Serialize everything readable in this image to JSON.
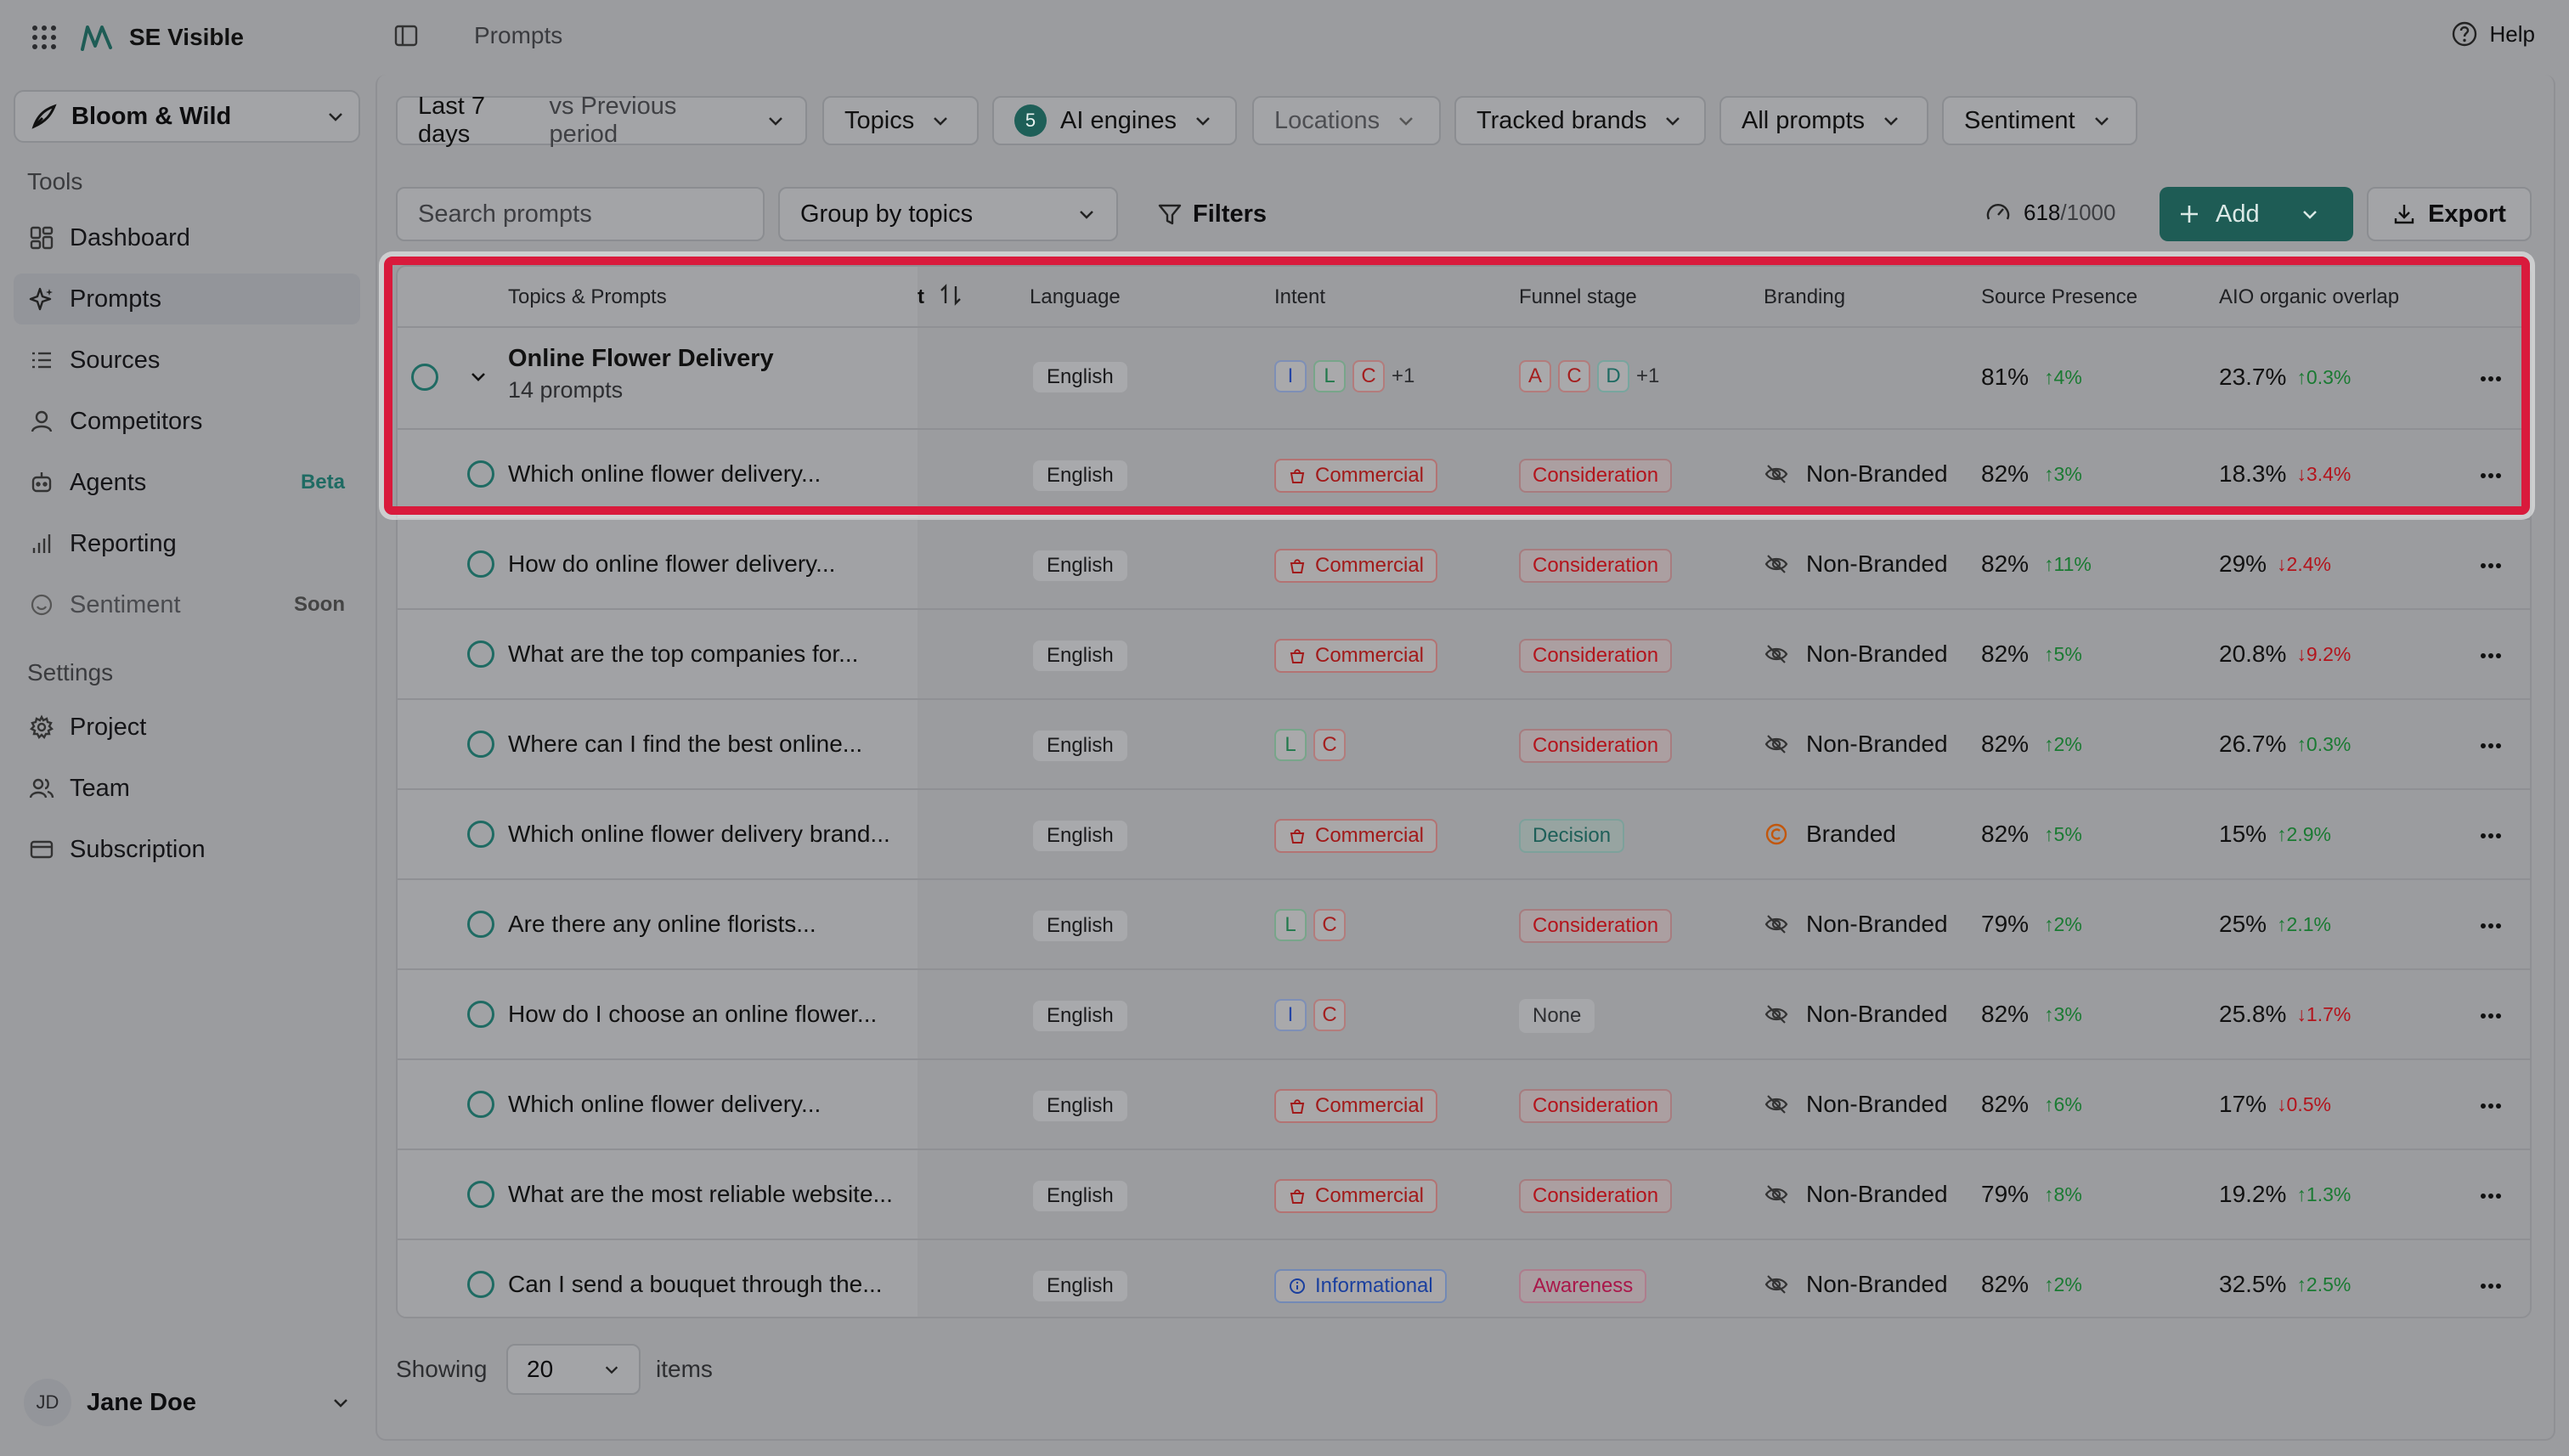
{
  "app": {
    "name": "SE Visible",
    "project": "Bloom & Wild",
    "breadcrumb": "Prompts",
    "help": "Help"
  },
  "sidebar": {
    "tools_label": "Tools",
    "settings_label": "Settings",
    "items": [
      {
        "label": "Dashboard",
        "icon": "dashboard-icon"
      },
      {
        "label": "Prompts",
        "icon": "sparkle-icon"
      },
      {
        "label": "Sources",
        "icon": "list-icon"
      },
      {
        "label": "Competitors",
        "icon": "user-icon"
      },
      {
        "label": "Agents",
        "icon": "robot-icon",
        "badge": "Beta"
      },
      {
        "label": "Reporting",
        "icon": "bar-chart-icon"
      },
      {
        "label": "Sentiment",
        "icon": "smile-icon",
        "badge": "Soon"
      }
    ],
    "settings": [
      {
        "label": "Project",
        "icon": "gear-icon"
      },
      {
        "label": "Team",
        "icon": "users-icon"
      },
      {
        "label": "Subscription",
        "icon": "card-icon"
      }
    ],
    "user": {
      "initials": "JD",
      "name": "Jane Doe"
    }
  },
  "filters": {
    "period": "Last 7 days",
    "period_compare": "vs Previous period",
    "topics": "Topics",
    "engines_count": "5",
    "engines": "AI engines",
    "locations": "Locations",
    "tracked_brands": "Tracked brands",
    "all_prompts": "All prompts",
    "sentiment": "Sentiment"
  },
  "toolbar": {
    "search_placeholder": "Search prompts",
    "group_by": "Group by topics",
    "filters": "Filters",
    "quota_used": "618",
    "quota_total": "/1000",
    "add": "Add",
    "export": "Export"
  },
  "table": {
    "headers": {
      "topics": "Topics & Prompts",
      "truncated": "t",
      "language": "Language",
      "intent": "Intent",
      "funnel": "Funnel stage",
      "branding": "Branding",
      "source": "Source Presence",
      "aio": "AIO organic overlap"
    },
    "group": {
      "title": "Online Flower Delivery",
      "count": "14 prompts",
      "language": "English",
      "intent_letters": [
        "I",
        "L",
        "C"
      ],
      "intent_more": "+1",
      "funnel_letters": [
        "A",
        "C",
        "D"
      ],
      "funnel_more": "+1",
      "source": "81%",
      "source_delta": "4%",
      "aio": "23.7%",
      "aio_delta": "0.3%"
    },
    "rows": [
      {
        "prompt": "Which online flower delivery...",
        "language": "English",
        "intent": "Commercial",
        "funnel": "Consideration",
        "branding": "Non-Branded",
        "source": "82%",
        "source_delta": "3%",
        "aio": "18.3%",
        "aio_delta": "3.4%"
      },
      {
        "prompt": "How do online flower delivery...",
        "language": "English",
        "intent": "Commercial",
        "funnel": "Consideration",
        "branding": "Non-Branded",
        "source": "82%",
        "source_delta": "11%",
        "aio": "29%",
        "aio_delta": "2.4%"
      },
      {
        "prompt": "What are the top companies for...",
        "language": "English",
        "intent": "Commercial",
        "funnel": "Consideration",
        "branding": "Non-Branded",
        "source": "82%",
        "source_delta": "5%",
        "aio": "20.8%",
        "aio_delta": "9.2%"
      },
      {
        "prompt": "Where can I find the best online...",
        "language": "English",
        "intent_letters": [
          "L",
          "C"
        ],
        "funnel": "Consideration",
        "branding": "Non-Branded",
        "source": "82%",
        "source_delta": "2%",
        "aio": "26.7%",
        "aio_delta": "0.3%"
      },
      {
        "prompt": "Which online flower delivery brand...",
        "language": "English",
        "intent": "Commercial",
        "funnel": "Decision",
        "branding": "Branded",
        "source": "82%",
        "source_delta": "5%",
        "aio": "15%",
        "aio_delta": "2.9%"
      },
      {
        "prompt": "Are there any online florists...",
        "language": "English",
        "intent_letters": [
          "L",
          "C"
        ],
        "funnel": "Consideration",
        "branding": "Non-Branded",
        "source": "79%",
        "source_delta": "2%",
        "aio": "25%",
        "aio_delta": "2.1%"
      },
      {
        "prompt": "How do I choose an online flower...",
        "language": "English",
        "intent_letters": [
          "I",
          "C"
        ],
        "funnel": "None",
        "branding": "Non-Branded",
        "source": "82%",
        "source_delta": "3%",
        "aio": "25.8%",
        "aio_delta": "1.7%"
      },
      {
        "prompt": "Which online flower delivery...",
        "language": "English",
        "intent": "Commercial",
        "funnel": "Consideration",
        "branding": "Non-Branded",
        "source": "82%",
        "source_delta": "6%",
        "aio": "17%",
        "aio_delta": "0.5%"
      },
      {
        "prompt": "What are the most reliable website...",
        "language": "English",
        "intent": "Commercial",
        "funnel": "Consideration",
        "branding": "Non-Branded",
        "source": "79%",
        "source_delta": "8%",
        "aio": "19.2%",
        "aio_delta": "1.3%"
      },
      {
        "prompt": "Can I send a bouquet through the...",
        "language": "English",
        "intent": "Informational",
        "funnel": "Awareness",
        "branding": "Non-Branded",
        "source": "82%",
        "source_delta": "2%",
        "aio": "32.5%",
        "aio_delta": "2.5%"
      }
    ]
  },
  "footer": {
    "showing": "Showing",
    "page_size": "20",
    "items": "items"
  },
  "colors": {
    "accent": "#1e5c55",
    "highlight": "#d91a3c",
    "up": "#1a7a32",
    "down": "#b3141c"
  }
}
